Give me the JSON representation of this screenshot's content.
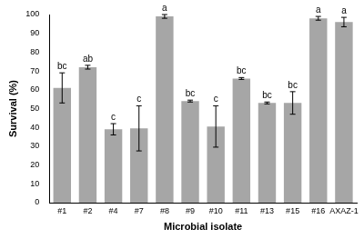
{
  "chart_data": {
    "type": "bar",
    "x_label": "Microbial isolate",
    "y_label": "Survival (%)",
    "categories": [
      "#1",
      "#2",
      "#4",
      "#7",
      "#8",
      "#9",
      "#10",
      "#11",
      "#13",
      "#15",
      "#16",
      "AXAZ-1"
    ],
    "values": [
      61,
      72,
      39,
      39.5,
      99,
      54,
      40.5,
      66,
      53,
      53,
      98,
      96
    ],
    "errors": [
      8,
      1,
      3,
      12,
      1,
      0.5,
      11,
      0.5,
      0.5,
      6,
      1,
      2.5
    ],
    "annotations": [
      "bc",
      "ab",
      "c",
      "c",
      "a",
      "bc",
      "c",
      "bc",
      "bc",
      "bc",
      "a",
      "a"
    ],
    "color": "#a6a6a6",
    "ylim": [
      0,
      100
    ],
    "yticks": [
      0,
      10,
      20,
      30,
      40,
      50,
      60,
      70,
      80,
      90,
      100
    ],
    "grid": false
  }
}
